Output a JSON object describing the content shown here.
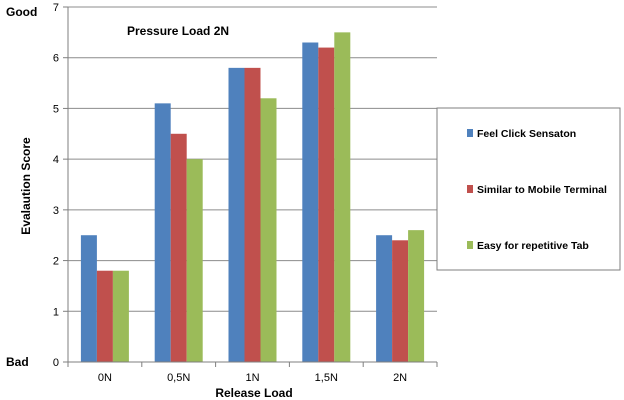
{
  "chart_data": {
    "type": "bar",
    "title": "Pressure Load 2N",
    "xlabel": "Release Load",
    "ylabel": "Evalaution Score",
    "ylim": [
      0,
      7
    ],
    "yticks": [
      0,
      1,
      2,
      3,
      4,
      5,
      6,
      7
    ],
    "y_top_label": "Good",
    "y_bottom_label": "Bad",
    "categories": [
      "0N",
      "0,5N",
      "1N",
      "1,5N",
      "2N"
    ],
    "grid": true,
    "legend_position": "right",
    "series": [
      {
        "name": "Feel Click Sensaton",
        "color": "#4f81bd",
        "values": [
          2.5,
          5.1,
          5.8,
          6.3,
          2.5
        ]
      },
      {
        "name": "Similar to Mobile Terminal",
        "color": "#c0504d",
        "values": [
          1.8,
          4.5,
          5.8,
          6.2,
          2.4
        ]
      },
      {
        "name": "Easy for repetitive Tab",
        "color": "#9bbb59",
        "values": [
          1.8,
          4.0,
          5.2,
          6.5,
          2.6
        ]
      }
    ]
  }
}
